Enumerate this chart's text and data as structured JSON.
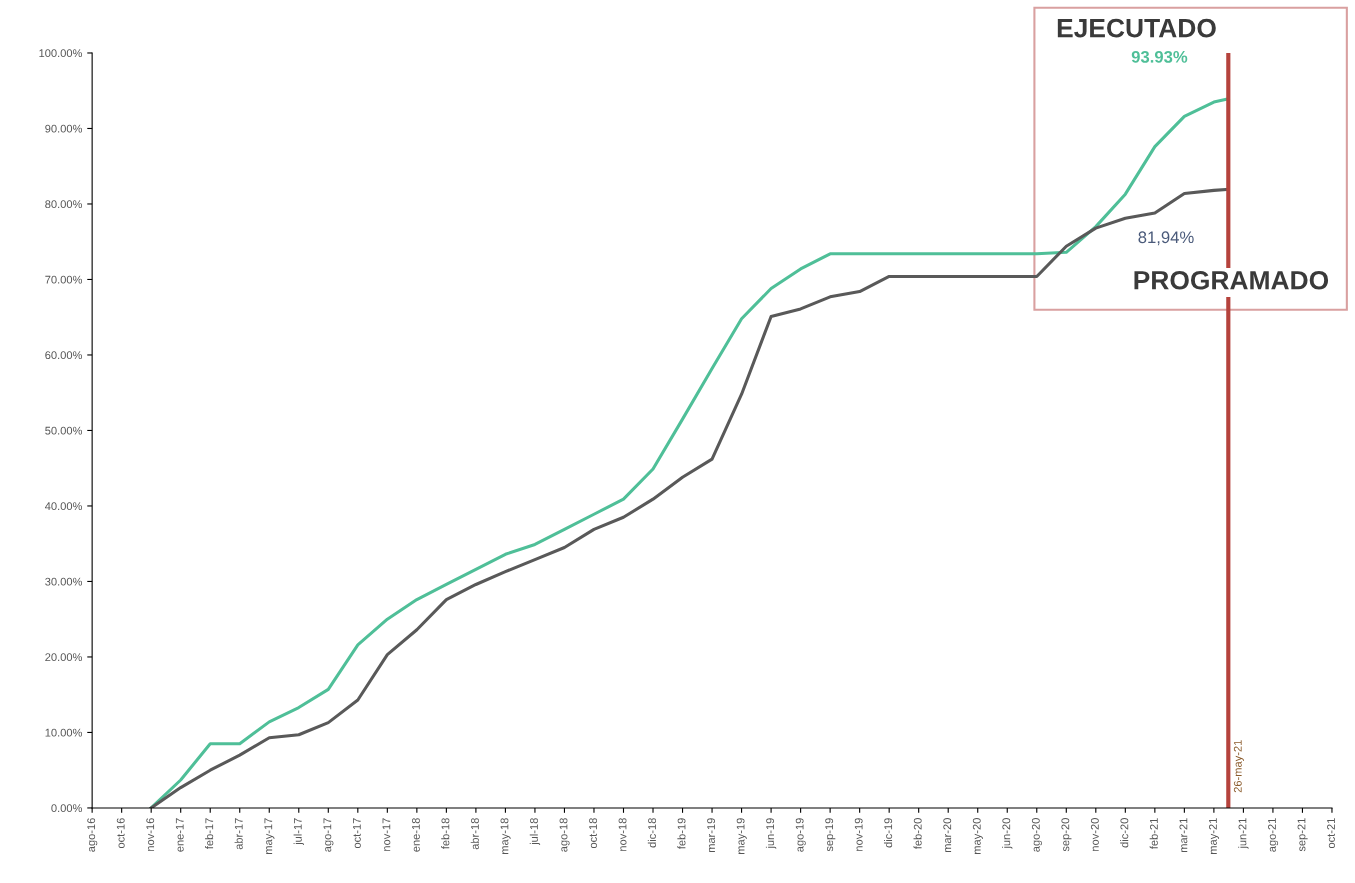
{
  "chart_data": {
    "type": "line",
    "x": [
      "2016-11-26",
      "2017-01-10",
      "2017-02-24",
      "2017-04-10",
      "2017-05-25",
      "2017-07-09",
      "2017-08-23",
      "2017-10-07",
      "2017-11-21",
      "2018-01-05",
      "2018-02-19",
      "2018-04-05",
      "2018-05-20",
      "2018-07-04",
      "2018-08-18",
      "2018-10-02",
      "2018-11-16",
      "2018-12-31",
      "2019-02-14",
      "2019-03-31",
      "2019-05-15",
      "2019-06-29",
      "2019-08-13",
      "2019-09-27",
      "2019-11-11",
      "2019-12-26",
      "2020-02-09",
      "2020-03-25",
      "2020-05-09",
      "2020-06-23",
      "2020-08-07",
      "2020-09-21",
      "2020-11-05",
      "2020-12-20",
      "2021-02-03",
      "2021-03-20",
      "2021-05-04",
      "2021-05-26"
    ],
    "series": [
      {
        "color": "#4fbf98",
        "values": [
          0,
          3.7,
          8.5,
          8.5,
          11.4,
          13.3,
          15.7,
          21.6,
          25.0,
          27.6,
          29.6,
          31.6,
          33.6,
          34.9,
          36.9,
          38.9,
          40.9,
          44.9,
          51.5,
          58.2,
          64.8,
          68.8,
          71.4,
          73.4,
          73.4,
          73.4,
          73.4,
          73.4,
          73.4,
          73.4,
          73.4,
          73.6,
          77.0,
          81.3,
          87.6,
          91.6,
          93.5,
          93.93
        ]
      },
      {
        "color": "#595959",
        "values": [
          0,
          2.7,
          5.0,
          7.0,
          9.3,
          9.7,
          11.3,
          14.3,
          20.3,
          23.6,
          27.6,
          29.6,
          31.3,
          32.9,
          34.5,
          36.9,
          38.5,
          40.9,
          43.8,
          46.2,
          54.8,
          65.1,
          66.1,
          67.7,
          68.4,
          70.4,
          70.4,
          70.4,
          70.4,
          70.4,
          70.4,
          74.4,
          76.8,
          78.1,
          78.8,
          81.4,
          81.8,
          81.94
        ]
      }
    ],
    "xlim": [
      "2016-08-28",
      "2021-10-31"
    ],
    "xticks": [
      {
        "value": "2016-08-28",
        "label": "ago-16"
      },
      {
        "value": "2016-10-12",
        "label": "oct-16"
      },
      {
        "value": "2016-11-26",
        "label": "nov-16"
      },
      {
        "value": "2017-01-10",
        "label": "ene-17"
      },
      {
        "value": "2017-02-24",
        "label": "feb-17"
      },
      {
        "value": "2017-04-10",
        "label": "abr-17"
      },
      {
        "value": "2017-05-25",
        "label": "may-17"
      },
      {
        "value": "2017-07-09",
        "label": "jul-17"
      },
      {
        "value": "2017-08-23",
        "label": "ago-17"
      },
      {
        "value": "2017-10-07",
        "label": "oct-17"
      },
      {
        "value": "2017-11-21",
        "label": "nov-17"
      },
      {
        "value": "2018-01-05",
        "label": "ene-18"
      },
      {
        "value": "2018-02-19",
        "label": "feb-18"
      },
      {
        "value": "2018-04-05",
        "label": "abr-18"
      },
      {
        "value": "2018-05-20",
        "label": "may-18"
      },
      {
        "value": "2018-07-04",
        "label": "jul-18"
      },
      {
        "value": "2018-08-18",
        "label": "ago-18"
      },
      {
        "value": "2018-10-02",
        "label": "oct-18"
      },
      {
        "value": "2018-11-16",
        "label": "nov-18"
      },
      {
        "value": "2018-12-31",
        "label": "dic-18"
      },
      {
        "value": "2019-02-14",
        "label": "feb-19"
      },
      {
        "value": "2019-03-31",
        "label": "mar-19"
      },
      {
        "value": "2019-05-15",
        "label": "may-19"
      },
      {
        "value": "2019-06-29",
        "label": "jun-19"
      },
      {
        "value": "2019-08-13",
        "label": "ago-19"
      },
      {
        "value": "2019-09-27",
        "label": "sep-19"
      },
      {
        "value": "2019-11-11",
        "label": "nov-19"
      },
      {
        "value": "2019-12-26",
        "label": "dic-19"
      },
      {
        "value": "2020-02-09",
        "label": "feb-20"
      },
      {
        "value": "2020-03-25",
        "label": "mar-20"
      },
      {
        "value": "2020-05-09",
        "label": "may-20"
      },
      {
        "value": "2020-06-23",
        "label": "jun-20"
      },
      {
        "value": "2020-08-07",
        "label": "ago-20"
      },
      {
        "value": "2020-09-21",
        "label": "sep-20"
      },
      {
        "value": "2020-11-05",
        "label": "nov-20"
      },
      {
        "value": "2020-12-20",
        "label": "dic-20"
      },
      {
        "value": "2021-02-03",
        "label": "feb-21"
      },
      {
        "value": "2021-03-20",
        "label": "mar-21"
      },
      {
        "value": "2021-05-04",
        "label": "may-21"
      },
      {
        "value": "2021-06-18",
        "label": "jun-21"
      },
      {
        "value": "2021-08-02",
        "label": "ago-21"
      },
      {
        "value": "2021-09-16",
        "label": "sep-21"
      },
      {
        "value": "2021-10-31",
        "label": "oct-21"
      }
    ],
    "ylim": [
      0,
      100
    ],
    "yticks": [
      {
        "value": 0,
        "label": "0.00%"
      },
      {
        "value": 10,
        "label": "10.00%"
      },
      {
        "value": 20,
        "label": "20.00%"
      },
      {
        "value": 30,
        "label": "30.00%"
      },
      {
        "value": 40,
        "label": "40.00%"
      },
      {
        "value": 50,
        "label": "50.00%"
      },
      {
        "value": 60,
        "label": "60.00%"
      },
      {
        "value": 70,
        "label": "70.00%"
      },
      {
        "value": 80,
        "label": "80.00%"
      },
      {
        "value": 90,
        "label": "90.00%"
      },
      {
        "value": 100,
        "label": "100.00%"
      }
    ],
    "ref_lines": [
      {
        "axis": "x",
        "value": "2021-05-26",
        "label": "26-may-21",
        "color": "#b5423c"
      }
    ],
    "annotations": [
      "EJECUTADO",
      "93.93%",
      "81,94%",
      "PROGRAMADO"
    ],
    "grid": false,
    "legend": false,
    "marker": "none",
    "line_style": "solid"
  }
}
